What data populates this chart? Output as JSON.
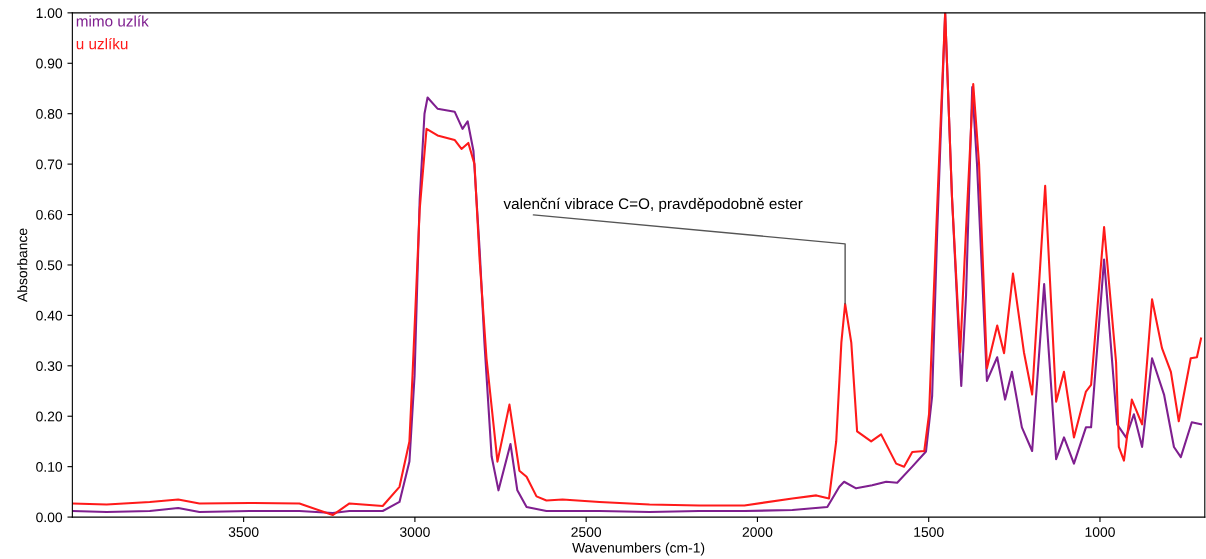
{
  "chart_data": {
    "type": "line",
    "xlabel": "Wavenumbers (cm-1)",
    "ylabel": "Absorbance",
    "xlim": [
      4000,
      694
    ],
    "xticks": [
      3500,
      3000,
      2500,
      2000,
      1500,
      1000
    ],
    "ylim": [
      0,
      1
    ],
    "yticks": [
      {
        "value": 0,
        "label": "0.00"
      },
      {
        "value": 0.1,
        "label": "0.10"
      },
      {
        "value": 0.2,
        "label": "0.20"
      },
      {
        "value": 0.3,
        "label": "0.30"
      },
      {
        "value": 0.4,
        "label": "0.40"
      },
      {
        "value": 0.5,
        "label": "0.50"
      },
      {
        "value": 0.6,
        "label": "0.60"
      },
      {
        "value": 0.7,
        "label": "0.70"
      },
      {
        "value": 0.8,
        "label": "0.80"
      },
      {
        "value": 0.9,
        "label": "0.90"
      },
      {
        "value": 1.0,
        "label": "1.00"
      }
    ],
    "grid": false,
    "legend": "top left",
    "marker": "none",
    "line_style": "solid",
    "series": [
      {
        "name": "mimo uzlík",
        "color": "#7f1f8f",
        "x": [
          4000,
          3900,
          3774,
          3691,
          3629,
          3482,
          3337,
          3240,
          3191,
          3094,
          3045,
          3016,
          3001,
          2986,
          2972,
          2963,
          2934,
          2884,
          2861,
          2846,
          2829,
          2811,
          2797,
          2776,
          2756,
          2721,
          2701,
          2674,
          2616,
          2461,
          2315,
          2170,
          2038,
          1898,
          1796,
          1761,
          1747,
          1712,
          1665,
          1624,
          1592,
          1548,
          1508,
          1490,
          1475,
          1452,
          1432,
          1405,
          1391,
          1373,
          1359,
          1330,
          1300,
          1277,
          1257,
          1228,
          1198,
          1163,
          1128,
          1105,
          1076,
          1041,
          1026,
          988,
          950,
          924,
          901,
          877,
          848,
          813,
          784,
          764,
          732,
          705
        ],
        "values": [
          0.012,
          0.01,
          0.012,
          0.018,
          0.01,
          0.012,
          0.012,
          0.008,
          0.012,
          0.012,
          0.03,
          0.11,
          0.28,
          0.63,
          0.8,
          0.832,
          0.81,
          0.804,
          0.77,
          0.785,
          0.726,
          0.53,
          0.346,
          0.12,
          0.053,
          0.145,
          0.053,
          0.02,
          0.012,
          0.012,
          0.01,
          0.012,
          0.012,
          0.014,
          0.02,
          0.06,
          0.07,
          0.057,
          0.063,
          0.07,
          0.068,
          0.1,
          0.13,
          0.24,
          0.57,
          1.0,
          0.634,
          0.26,
          0.44,
          0.853,
          0.7,
          0.27,
          0.317,
          0.233,
          0.288,
          0.178,
          0.131,
          0.462,
          0.115,
          0.158,
          0.106,
          0.178,
          0.178,
          0.511,
          0.184,
          0.158,
          0.204,
          0.139,
          0.315,
          0.243,
          0.139,
          0.119,
          0.188,
          0.184
        ]
      },
      {
        "name": "u uzlíku",
        "color": "#ff1a1a",
        "x": [
          4000,
          3900,
          3774,
          3691,
          3629,
          3482,
          3337,
          3240,
          3191,
          3094,
          3045,
          3016,
          3007,
          2986,
          2966,
          2934,
          2884,
          2864,
          2844,
          2826,
          2811,
          2791,
          2759,
          2724,
          2695,
          2674,
          2645,
          2616,
          2569,
          2461,
          2315,
          2170,
          2038,
          1898,
          1828,
          1791,
          1770,
          1755,
          1744,
          1726,
          1709,
          1668,
          1639,
          1595,
          1572,
          1548,
          1513,
          1499,
          1478,
          1452,
          1432,
          1408,
          1391,
          1370,
          1353,
          1330,
          1300,
          1280,
          1254,
          1222,
          1198,
          1160,
          1128,
          1105,
          1076,
          1041,
          1026,
          988,
          953,
          945,
          930,
          907,
          877,
          848,
          819,
          793,
          770,
          735,
          717,
          705
        ],
        "values": [
          0.027,
          0.025,
          0.03,
          0.035,
          0.027,
          0.028,
          0.027,
          0.004,
          0.027,
          0.022,
          0.06,
          0.15,
          0.28,
          0.61,
          0.77,
          0.757,
          0.748,
          0.73,
          0.742,
          0.7,
          0.51,
          0.315,
          0.11,
          0.223,
          0.092,
          0.08,
          0.041,
          0.033,
          0.035,
          0.03,
          0.025,
          0.023,
          0.023,
          0.037,
          0.043,
          0.037,
          0.15,
          0.346,
          0.423,
          0.346,
          0.17,
          0.15,
          0.164,
          0.106,
          0.1,
          0.129,
          0.131,
          0.204,
          0.57,
          1.0,
          0.634,
          0.327,
          0.57,
          0.859,
          0.7,
          0.295,
          0.38,
          0.325,
          0.483,
          0.327,
          0.243,
          0.657,
          0.229,
          0.288,
          0.158,
          0.249,
          0.262,
          0.575,
          0.307,
          0.139,
          0.112,
          0.233,
          0.184,
          0.432,
          0.335,
          0.288,
          0.19,
          0.315,
          0.317,
          0.354
        ]
      }
    ],
    "annotations": [
      {
        "text": "valenční vibrace C=O, pravděpodobně ester",
        "x": 1744,
        "y": 0.423
      }
    ]
  }
}
